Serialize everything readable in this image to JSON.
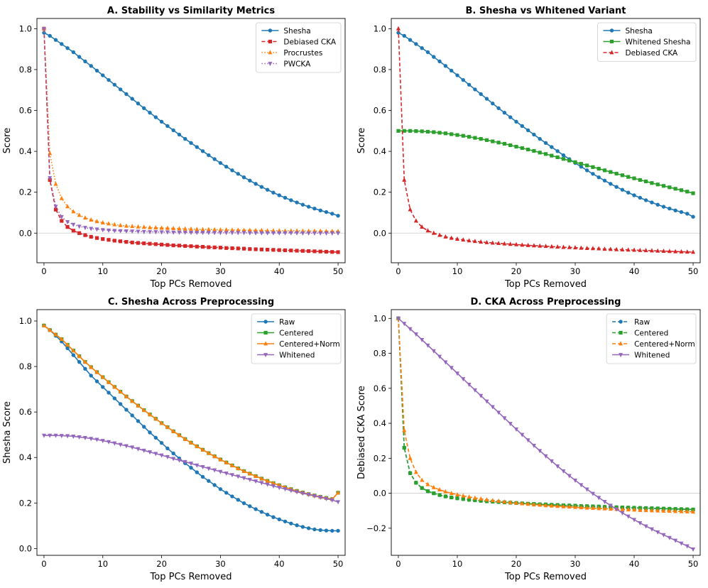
{
  "colors": {
    "blue": "#1f77b4",
    "red": "#d62728",
    "orange": "#ff7f0e",
    "purple": "#9467bd",
    "green": "#2ca02c"
  },
  "chart_data": [
    {
      "type": "line",
      "title": "A. Stability vs Similarity Metrics",
      "xlabel": "Top PCs Removed",
      "ylabel": "Score",
      "xlim": [
        -1.2,
        51.2
      ],
      "ylim": [
        -0.145,
        1.05
      ],
      "xticks": [
        "0",
        "10",
        "20",
        "30",
        "40",
        "50"
      ],
      "yticks": [
        "0.0",
        "0.2",
        "0.4",
        "0.6",
        "0.8",
        "1.0"
      ],
      "zero_line": true,
      "legend": "top-right",
      "series": [
        {
          "name": "Shesha",
          "color": "blue",
          "marker": "circle",
          "dash": "solid",
          "values": [
            0.98,
            0.965,
            0.945,
            0.925,
            0.905,
            0.885,
            0.862,
            0.84,
            0.818,
            0.795,
            0.772,
            0.749,
            0.726,
            0.703,
            0.68,
            0.657,
            0.634,
            0.611,
            0.589,
            0.567,
            0.545,
            0.524,
            0.503,
            0.482,
            0.461,
            0.441,
            0.421,
            0.401,
            0.381,
            0.362,
            0.343,
            0.325,
            0.307,
            0.29,
            0.273,
            0.257,
            0.241,
            0.226,
            0.212,
            0.198,
            0.185,
            0.173,
            0.161,
            0.15,
            0.139,
            0.129,
            0.12,
            0.111,
            0.103,
            0.095,
            0.085
          ]
        },
        {
          "name": "Debiased CKA",
          "color": "red",
          "marker": "square",
          "dash": "dashed",
          "values": [
            1.0,
            0.26,
            0.115,
            0.06,
            0.03,
            0.012,
            0.0,
            -0.01,
            -0.018,
            -0.024,
            -0.029,
            -0.033,
            -0.037,
            -0.04,
            -0.043,
            -0.046,
            -0.048,
            -0.05,
            -0.052,
            -0.054,
            -0.056,
            -0.058,
            -0.06,
            -0.061,
            -0.063,
            -0.064,
            -0.066,
            -0.067,
            -0.069,
            -0.07,
            -0.071,
            -0.073,
            -0.074,
            -0.075,
            -0.076,
            -0.078,
            -0.079,
            -0.08,
            -0.081,
            -0.082,
            -0.083,
            -0.084,
            -0.085,
            -0.086,
            -0.087,
            -0.088,
            -0.089,
            -0.09,
            -0.091,
            -0.092,
            -0.093
          ]
        },
        {
          "name": "Procrustes",
          "color": "orange",
          "marker": "triangle-up",
          "dash": "dotted",
          "values": [
            1.0,
            0.39,
            0.24,
            0.17,
            0.13,
            0.105,
            0.088,
            0.075,
            0.065,
            0.057,
            0.051,
            0.046,
            0.042,
            0.038,
            0.035,
            0.033,
            0.031,
            0.029,
            0.027,
            0.026,
            0.025,
            0.024,
            0.023,
            0.022,
            0.021,
            0.02,
            0.019,
            0.018,
            0.018,
            0.017,
            0.016,
            0.016,
            0.015,
            0.015,
            0.014,
            0.014,
            0.013,
            0.013,
            0.012,
            0.012,
            0.012,
            0.011,
            0.011,
            0.011,
            0.01,
            0.01,
            0.01,
            0.01,
            0.009,
            0.009,
            0.009
          ]
        },
        {
          "name": "PWCKA",
          "color": "purple",
          "marker": "triangle-down",
          "dash": "dotted",
          "values": [
            1.0,
            0.27,
            0.13,
            0.08,
            0.055,
            0.042,
            0.033,
            0.027,
            0.022,
            0.019,
            0.016,
            0.014,
            0.012,
            0.011,
            0.01,
            0.009,
            0.008,
            0.007,
            0.006,
            0.006,
            0.005,
            0.005,
            0.004,
            0.004,
            0.004,
            0.003,
            0.003,
            0.003,
            0.003,
            0.002,
            0.002,
            0.002,
            0.002,
            0.002,
            0.002,
            0.001,
            0.001,
            0.001,
            0.001,
            0.001,
            0.001,
            0.001,
            0.001,
            0.001,
            0.0,
            0.0,
            0.0,
            0.0,
            0.0,
            0.0,
            0.0
          ]
        }
      ]
    },
    {
      "type": "line",
      "title": "B. Shesha vs Whitened Variant",
      "xlabel": "Top PCs Removed",
      "ylabel": "Score",
      "xlim": [
        -1.2,
        51.2
      ],
      "ylim": [
        -0.145,
        1.05
      ],
      "xticks": [
        "0",
        "10",
        "20",
        "30",
        "40",
        "50"
      ],
      "yticks": [
        "0.0",
        "0.2",
        "0.4",
        "0.6",
        "0.8",
        "1.0"
      ],
      "zero_line": true,
      "legend": "top-right",
      "series": [
        {
          "name": "Shesha",
          "color": "blue",
          "marker": "circle",
          "dash": "solid",
          "values": [
            0.98,
            0.965,
            0.945,
            0.925,
            0.905,
            0.885,
            0.862,
            0.84,
            0.818,
            0.795,
            0.772,
            0.749,
            0.726,
            0.703,
            0.68,
            0.657,
            0.634,
            0.611,
            0.589,
            0.567,
            0.545,
            0.524,
            0.503,
            0.482,
            0.461,
            0.441,
            0.421,
            0.401,
            0.381,
            0.362,
            0.343,
            0.325,
            0.307,
            0.29,
            0.273,
            0.257,
            0.241,
            0.226,
            0.212,
            0.198,
            0.185,
            0.173,
            0.161,
            0.15,
            0.139,
            0.129,
            0.12,
            0.111,
            0.103,
            0.095,
            0.08
          ]
        },
        {
          "name": "Whitened Shesha",
          "color": "green",
          "marker": "square",
          "dash": "solid",
          "values": [
            0.5,
            0.5,
            0.5,
            0.499,
            0.498,
            0.496,
            0.494,
            0.491,
            0.488,
            0.484,
            0.48,
            0.476,
            0.471,
            0.466,
            0.461,
            0.455,
            0.449,
            0.443,
            0.437,
            0.43,
            0.423,
            0.416,
            0.409,
            0.402,
            0.394,
            0.387,
            0.379,
            0.371,
            0.363,
            0.355,
            0.347,
            0.339,
            0.331,
            0.323,
            0.315,
            0.307,
            0.299,
            0.291,
            0.283,
            0.275,
            0.268,
            0.26,
            0.253,
            0.245,
            0.238,
            0.231,
            0.224,
            0.217,
            0.21,
            0.203,
            0.195
          ]
        },
        {
          "name": "Debiased CKA",
          "color": "red",
          "marker": "triangle-up",
          "dash": "dashed",
          "values": [
            1.0,
            0.26,
            0.115,
            0.06,
            0.03,
            0.012,
            0.0,
            -0.01,
            -0.018,
            -0.024,
            -0.029,
            -0.033,
            -0.037,
            -0.04,
            -0.043,
            -0.046,
            -0.048,
            -0.05,
            -0.052,
            -0.054,
            -0.056,
            -0.058,
            -0.06,
            -0.061,
            -0.063,
            -0.064,
            -0.066,
            -0.067,
            -0.069,
            -0.07,
            -0.071,
            -0.073,
            -0.074,
            -0.075,
            -0.076,
            -0.078,
            -0.079,
            -0.08,
            -0.081,
            -0.082,
            -0.083,
            -0.084,
            -0.085,
            -0.086,
            -0.087,
            -0.088,
            -0.089,
            -0.09,
            -0.091,
            -0.092,
            -0.093
          ]
        }
      ]
    },
    {
      "type": "line",
      "title": "C. Shesha Across Preprocessing",
      "xlabel": "Top PCs Removed",
      "ylabel": "Shesha Score",
      "xlim": [
        -1.2,
        51.2
      ],
      "ylim": [
        -0.03,
        1.05
      ],
      "xticks": [
        "0",
        "10",
        "20",
        "30",
        "40",
        "50"
      ],
      "yticks": [
        "0.0",
        "0.2",
        "0.4",
        "0.6",
        "0.8",
        "1.0"
      ],
      "zero_line": false,
      "legend": "top-right",
      "series": [
        {
          "name": "Raw",
          "color": "blue",
          "marker": "circle",
          "dash": "solid",
          "values": [
            0.98,
            0.96,
            0.935,
            0.91,
            0.88,
            0.85,
            0.82,
            0.79,
            0.76,
            0.735,
            0.71,
            0.685,
            0.66,
            0.635,
            0.61,
            0.585,
            0.56,
            0.535,
            0.51,
            0.487,
            0.464,
            0.44,
            0.418,
            0.396,
            0.375,
            0.355,
            0.335,
            0.315,
            0.297,
            0.279,
            0.261,
            0.245,
            0.229,
            0.214,
            0.199,
            0.186,
            0.173,
            0.161,
            0.149,
            0.138,
            0.128,
            0.119,
            0.11,
            0.102,
            0.095,
            0.089,
            0.084,
            0.081,
            0.079,
            0.078,
            0.078
          ]
        },
        {
          "name": "Centered",
          "color": "green",
          "marker": "square",
          "dash": "solid",
          "values": [
            0.98,
            0.96,
            0.94,
            0.92,
            0.895,
            0.87,
            0.845,
            0.82,
            0.797,
            0.775,
            0.753,
            0.731,
            0.71,
            0.689,
            0.668,
            0.648,
            0.628,
            0.608,
            0.589,
            0.57,
            0.551,
            0.533,
            0.515,
            0.498,
            0.481,
            0.465,
            0.449,
            0.434,
            0.419,
            0.405,
            0.391,
            0.378,
            0.365,
            0.352,
            0.34,
            0.329,
            0.318,
            0.307,
            0.297,
            0.287,
            0.278,
            0.269,
            0.261,
            0.253,
            0.246,
            0.239,
            0.233,
            0.227,
            0.222,
            0.217,
            0.245
          ]
        },
        {
          "name": "Centered+Norm",
          "color": "orange",
          "marker": "triangle-up",
          "dash": "solid",
          "values": [
            0.98,
            0.96,
            0.94,
            0.92,
            0.895,
            0.87,
            0.845,
            0.82,
            0.797,
            0.775,
            0.753,
            0.731,
            0.71,
            0.689,
            0.668,
            0.648,
            0.628,
            0.608,
            0.589,
            0.57,
            0.551,
            0.533,
            0.515,
            0.498,
            0.481,
            0.465,
            0.449,
            0.434,
            0.419,
            0.405,
            0.391,
            0.378,
            0.365,
            0.352,
            0.34,
            0.329,
            0.318,
            0.307,
            0.297,
            0.287,
            0.278,
            0.269,
            0.261,
            0.253,
            0.246,
            0.239,
            0.233,
            0.227,
            0.222,
            0.217,
            0.245
          ]
        },
        {
          "name": "Whitened",
          "color": "purple",
          "marker": "triangle-down",
          "dash": "solid",
          "values": [
            0.497,
            0.497,
            0.497,
            0.496,
            0.495,
            0.493,
            0.49,
            0.487,
            0.483,
            0.479,
            0.474,
            0.469,
            0.463,
            0.457,
            0.451,
            0.445,
            0.438,
            0.431,
            0.424,
            0.417,
            0.41,
            0.403,
            0.395,
            0.388,
            0.381,
            0.374,
            0.366,
            0.359,
            0.352,
            0.345,
            0.338,
            0.331,
            0.324,
            0.317,
            0.31,
            0.303,
            0.296,
            0.289,
            0.282,
            0.275,
            0.268,
            0.262,
            0.255,
            0.249,
            0.243,
            0.237,
            0.231,
            0.225,
            0.219,
            0.213,
            0.205
          ]
        }
      ]
    },
    {
      "type": "line",
      "title": "D. CKA Across Preprocessing",
      "xlabel": "Top PCs Removed",
      "ylabel": "Debiased CKA Score",
      "xlim": [
        -1.2,
        51.2
      ],
      "ylim": [
        -0.355,
        1.05
      ],
      "xticks": [
        "0",
        "10",
        "20",
        "30",
        "40",
        "50"
      ],
      "yticks": [
        "−0.2",
        "0.0",
        "0.2",
        "0.4",
        "0.6",
        "0.8",
        "1.0"
      ],
      "zero_line": true,
      "legend": "top-right",
      "series": [
        {
          "name": "Raw",
          "color": "blue",
          "marker": "circle",
          "dash": "dashed",
          "values": [
            1.0,
            0.26,
            0.115,
            0.06,
            0.03,
            0.012,
            0.0,
            -0.01,
            -0.018,
            -0.024,
            -0.029,
            -0.033,
            -0.037,
            -0.04,
            -0.043,
            -0.046,
            -0.048,
            -0.05,
            -0.052,
            -0.054,
            -0.056,
            -0.058,
            -0.06,
            -0.061,
            -0.063,
            -0.064,
            -0.066,
            -0.067,
            -0.069,
            -0.07,
            -0.071,
            -0.073,
            -0.074,
            -0.075,
            -0.076,
            -0.078,
            -0.079,
            -0.08,
            -0.081,
            -0.082,
            -0.083,
            -0.084,
            -0.085,
            -0.086,
            -0.087,
            -0.088,
            -0.089,
            -0.09,
            -0.091,
            -0.092,
            -0.093
          ]
        },
        {
          "name": "Centered",
          "color": "green",
          "marker": "square",
          "dash": "dashed",
          "values": [
            1.0,
            0.26,
            0.115,
            0.06,
            0.03,
            0.012,
            0.0,
            -0.01,
            -0.018,
            -0.024,
            -0.029,
            -0.033,
            -0.037,
            -0.04,
            -0.043,
            -0.046,
            -0.048,
            -0.05,
            -0.052,
            -0.054,
            -0.056,
            -0.058,
            -0.06,
            -0.061,
            -0.063,
            -0.064,
            -0.066,
            -0.067,
            -0.069,
            -0.07,
            -0.071,
            -0.073,
            -0.074,
            -0.075,
            -0.076,
            -0.078,
            -0.079,
            -0.08,
            -0.081,
            -0.082,
            -0.083,
            -0.084,
            -0.085,
            -0.086,
            -0.087,
            -0.088,
            -0.089,
            -0.09,
            -0.091,
            -0.092,
            -0.093
          ]
        },
        {
          "name": "Centered+Norm",
          "color": "orange",
          "marker": "triangle-up",
          "dash": "dashed",
          "values": [
            1.0,
            0.36,
            0.2,
            0.12,
            0.075,
            0.05,
            0.033,
            0.02,
            0.009,
            0.0,
            -0.008,
            -0.015,
            -0.021,
            -0.027,
            -0.032,
            -0.037,
            -0.041,
            -0.045,
            -0.049,
            -0.053,
            -0.056,
            -0.059,
            -0.062,
            -0.065,
            -0.067,
            -0.07,
            -0.072,
            -0.074,
            -0.076,
            -0.078,
            -0.08,
            -0.082,
            -0.084,
            -0.085,
            -0.087,
            -0.088,
            -0.09,
            -0.091,
            -0.093,
            -0.094,
            -0.095,
            -0.097,
            -0.098,
            -0.099,
            -0.1,
            -0.101,
            -0.102,
            -0.103,
            -0.104,
            -0.105,
            -0.106
          ]
        },
        {
          "name": "Whitened",
          "color": "purple",
          "marker": "triangle-down",
          "dash": "solid",
          "values": [
            1.0,
            0.97,
            0.94,
            0.91,
            0.878,
            0.846,
            0.814,
            0.782,
            0.75,
            0.718,
            0.686,
            0.654,
            0.622,
            0.59,
            0.558,
            0.526,
            0.494,
            0.462,
            0.43,
            0.398,
            0.366,
            0.335,
            0.304,
            0.273,
            0.243,
            0.213,
            0.184,
            0.155,
            0.127,
            0.1,
            0.074,
            0.048,
            0.023,
            -0.002,
            -0.025,
            -0.048,
            -0.07,
            -0.091,
            -0.112,
            -0.132,
            -0.151,
            -0.17,
            -0.188,
            -0.205,
            -0.222,
            -0.238,
            -0.254,
            -0.27,
            -0.286,
            -0.302,
            -0.32
          ]
        }
      ]
    }
  ]
}
